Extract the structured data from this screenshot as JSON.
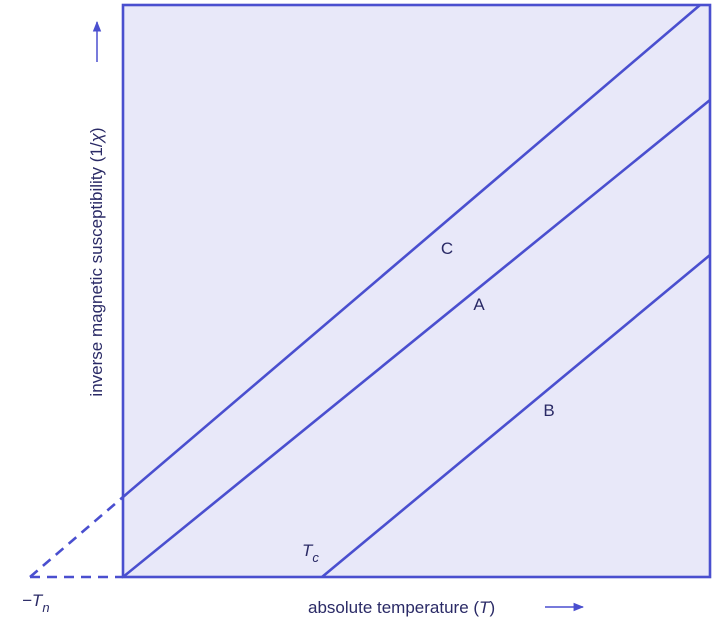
{
  "y_axis_label": {
    "text": "inverse magnetic susceptibility (1/",
    "symbol": "χ",
    "close": ")"
  },
  "x_axis_label": {
    "text": "absolute temperature (",
    "symbol": "T",
    "close": ")"
  },
  "curves": [
    {
      "label": "C"
    },
    {
      "label": "A"
    },
    {
      "label": "B"
    }
  ],
  "curie_temperature": {
    "symbol": "T",
    "subscript": "c"
  },
  "neel_temperature": {
    "symbol": "−T",
    "subscript": "n"
  }
}
